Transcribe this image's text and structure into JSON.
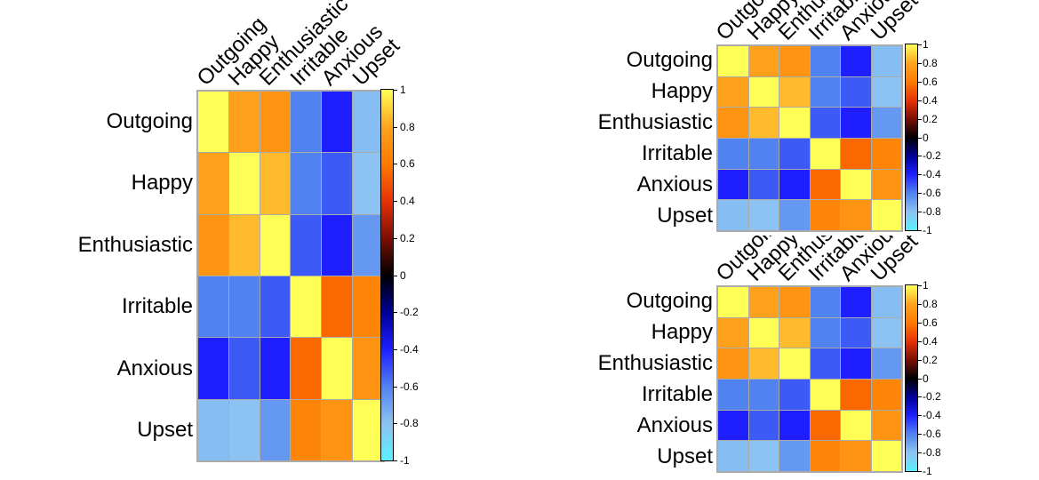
{
  "figure": {
    "background": "#FFFFFF",
    "text_color": "#000000",
    "grid_line_color": "#ABABAB",
    "colorbar_border_color": "#000000"
  },
  "chart_data": {
    "type": "heatmap",
    "subtype": "correlation-matrix",
    "panels": [
      {
        "id": "left",
        "description": "large correlation heatmap"
      },
      {
        "id": "top-right",
        "description": "small correlation heatmap, top right"
      },
      {
        "id": "bottom-right",
        "description": "small correlation heatmap, bottom right"
      }
    ],
    "variables": [
      "Outgoing",
      "Happy",
      "Enthusiastic",
      "Irritable",
      "Anxious",
      "Upset"
    ],
    "matrix": [
      [
        1.0,
        0.78,
        0.72,
        -0.6,
        -0.4,
        -0.78
      ],
      [
        0.78,
        1.0,
        0.85,
        -0.6,
        -0.52,
        -0.8
      ],
      [
        0.72,
        0.85,
        1.0,
        -0.52,
        -0.4,
        -0.67
      ],
      [
        -0.6,
        -0.6,
        -0.52,
        1.0,
        0.55,
        0.65
      ],
      [
        -0.4,
        -0.52,
        -0.4,
        0.55,
        1.0,
        0.72
      ],
      [
        -0.78,
        -0.8,
        -0.67,
        0.65,
        0.72,
        1.0
      ]
    ],
    "colorbar": {
      "range": [
        -1,
        1
      ],
      "tick_values": [
        1,
        0.8,
        0.6,
        0.4,
        0.2,
        0,
        -0.2,
        -0.4,
        -0.6,
        -0.8,
        -1
      ],
      "tick_labels": [
        "1",
        "0.8",
        "0.6",
        "0.4",
        "0.2",
        "0",
        "-0.2",
        "-0.4",
        "-0.6",
        "-0.8",
        "-1"
      ],
      "colormap_stops": [
        {
          "value": 1.0,
          "color": "#FFFF55"
        },
        {
          "value": 0.8,
          "color": "#FFA41E"
        },
        {
          "value": 0.6,
          "color": "#FF7A00"
        },
        {
          "value": 0.4,
          "color": "#E83205"
        },
        {
          "value": 0.2,
          "color": "#7D0E05"
        },
        {
          "value": 0.0,
          "color": "#000000"
        },
        {
          "value": -0.2,
          "color": "#000096"
        },
        {
          "value": -0.4,
          "color": "#1E1EFF"
        },
        {
          "value": -0.6,
          "color": "#5082F0"
        },
        {
          "value": -0.8,
          "color": "#8CC3F2"
        },
        {
          "value": -1.0,
          "color": "#5AF0FF"
        }
      ]
    }
  }
}
